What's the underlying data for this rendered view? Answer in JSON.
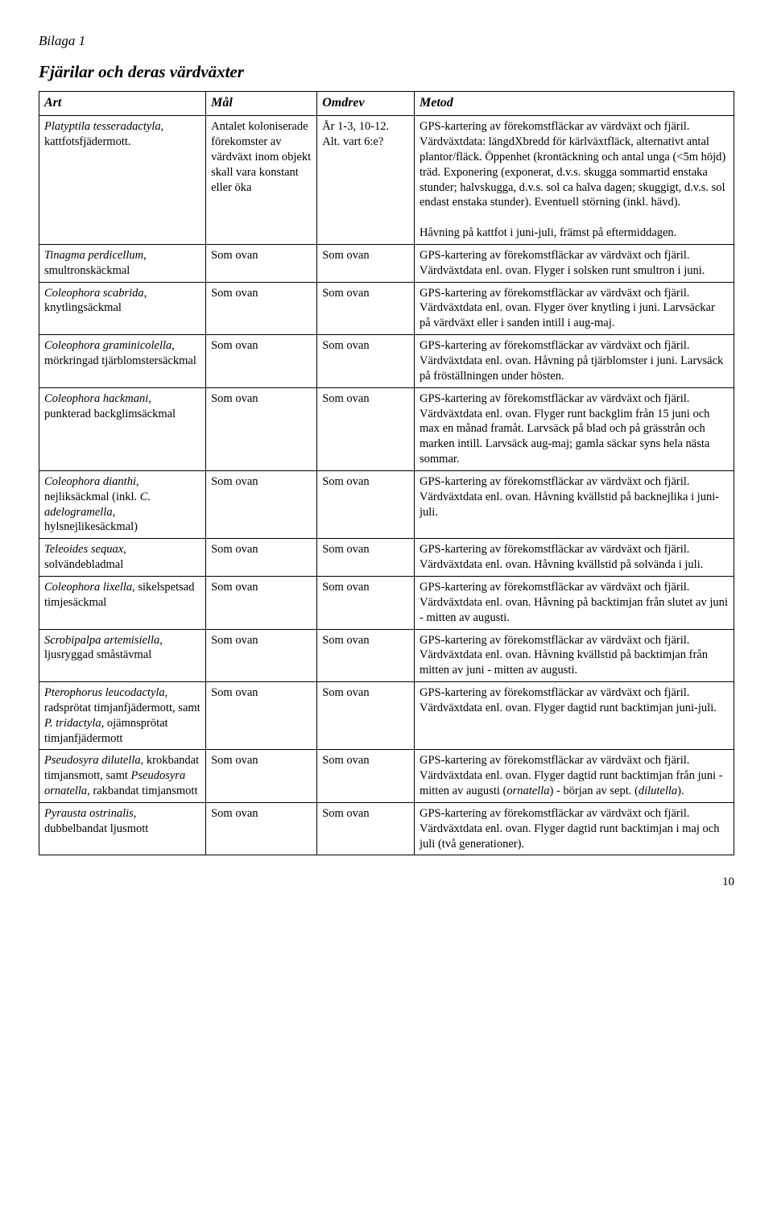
{
  "bilaga": "Bilaga 1",
  "main_title": "Fjärilar och deras värdväxter",
  "headers": {
    "art": "Art",
    "mal": "Mål",
    "omdrev": "Omdrev",
    "metod": "Metod"
  },
  "page_number": "10",
  "rows": [
    {
      "art_html": "<span class=\"species-it\">Platyptila tesseradactyla</span>, kattfotsfjädermott.",
      "mal": "Antalet koloniserade förekomster av värdväxt inom objekt skall vara konstant eller öka",
      "omdrev": "År 1-3, 10-12. Alt. vart 6:e?",
      "metod_html": "GPS-kartering av förekomstfläckar av värdväxt och fjäril. Värdväxtdata: längdXbredd för kärlväxtfläck, alternativt antal plantor/fläck. Öppenhet (krontäckning och antal unga (&lt;5m höjd) träd. Exponering (exponerat, d.v.s. skugga sommartid enstaka stunder; halvskugga, d.v.s. sol ca halva dagen; skuggigt, d.v.s. sol endast enstaka stunder). Eventuell störning (inkl. hävd).<br><br>Håvning på kattfot i juni-juli, främst på eftermiddagen."
    },
    {
      "art_html": "<span class=\"species-it\">Tinagma perdicellum</span>, smultronskäckmal",
      "mal": "Som ovan",
      "omdrev": "Som ovan",
      "metod_html": "GPS-kartering av förekomstfläckar av värdväxt och fjäril. Värdväxtdata enl. ovan. Flyger i solsken runt smultron i juni."
    },
    {
      "art_html": "<span class=\"species-it\">Coleophora scabrida</span>, knytlingsäckmal",
      "mal": "Som ovan",
      "omdrev": "Som ovan",
      "metod_html": "GPS-kartering av förekomstfläckar av värdväxt och fjäril. Värdväxtdata enl. ovan. Flyger över knytling i juni. Larvsäckar på värdväxt eller i sanden intill i aug-maj."
    },
    {
      "art_html": "<span class=\"species-it\">Coleophora graminicolella</span>, mörkringad tjärblomstersäckmal",
      "mal": "Som ovan",
      "omdrev": "Som ovan",
      "metod_html": "GPS-kartering av förekomstfläckar av värdväxt och fjäril. Värdväxtdata enl. ovan. Håvning på tjärblomster i juni. Larvsäck på fröställningen under hösten."
    },
    {
      "art_html": "<span class=\"species-it\">Coleophora hackmani</span>, punkterad backglimsäckmal",
      "mal": "Som ovan",
      "omdrev": "Som ovan",
      "metod_html": "GPS-kartering av förekomstfläckar av värdväxt och fjäril. Värdväxtdata enl. ovan. Flyger runt backglim från 15 juni och max en månad framåt. Larvsäck på blad och på grässtrån och marken intill. Larvsäck aug-maj; gamla säckar syns hela nästa sommar."
    },
    {
      "art_html": "<span class=\"species-it\">Coleophora dianthi</span>, nejliksäckmal (inkl. <span class=\"species-it\">C. adelogramella</span>, hylsnejlikesäckmal)",
      "mal": "Som ovan",
      "omdrev": "Som ovan",
      "metod_html": "GPS-kartering av förekomstfläckar av värdväxt och fjäril. Värdväxtdata enl. ovan. Håvning kvällstid på backnejlika i juni-juli."
    },
    {
      "art_html": "<span class=\"species-it\">Teleoides sequax</span>, solvändebladmal",
      "mal": "Som ovan",
      "omdrev": "Som ovan",
      "metod_html": "GPS-kartering av förekomstfläckar av värdväxt och fjäril. Värdväxtdata enl. ovan. Håvning kvällstid på solvända i juli."
    },
    {
      "art_html": "<span class=\"species-it\">Coleophora lixella</span>, sikelspetsad timjesäckmal",
      "mal": "Som ovan",
      "omdrev": "Som ovan",
      "metod_html": "GPS-kartering av förekomstfläckar av värdväxt och fjäril. Värdväxtdata enl. ovan. Håvning på backtimjan från slutet av juni - mitten av augusti."
    },
    {
      "art_html": "<span class=\"species-it\">Scrobipalpa artemisiella</span>, ljusryggad småstävmal",
      "mal": "Som ovan",
      "omdrev": "Som ovan",
      "metod_html": "GPS-kartering av förekomstfläckar av värdväxt och fjäril. Värdväxtdata enl. ovan. Håvning kvällstid på backtimjan från mitten av juni - mitten av augusti."
    },
    {
      "art_html": "<span class=\"species-it\">Pterophorus leucodactyla</span>, radsprötat timjanfjädermott, samt <span class=\"species-it\">P. tridactyla</span>, ojämnsprötat timjanfjädermott",
      "mal": "Som ovan",
      "omdrev": "Som ovan",
      "metod_html": "GPS-kartering av förekomstfläckar av värdväxt och fjäril. Värdväxtdata enl. ovan. Flyger dagtid runt backtimjan juni-juli."
    },
    {
      "art_html": "<span class=\"species-it\">Pseudosyra dilutella</span>, krokbandat timjansmott, samt <span class=\"species-it\">Pseudosyra ornatella</span>, rakbandat timjansmott",
      "mal": "Som ovan",
      "omdrev": "Som ovan",
      "metod_html": "GPS-kartering av förekomstfläckar av värdväxt och fjäril. Värdväxtdata enl. ovan. Flyger dagtid runt backtimjan från juni - mitten av augusti (<span class=\"species-it\">ornatella</span>) - början av sept. (<span class=\"species-it\">dilutella</span>)."
    },
    {
      "art_html": "<span class=\"species-it\">Pyrausta ostrinalis</span>, dubbelbandat ljusmott",
      "mal": "Som ovan",
      "omdrev": "Som ovan",
      "metod_html": "GPS-kartering av förekomstfläckar av värdväxt och fjäril. Värdväxtdata enl. ovan. Flyger dagtid runt backtimjan i maj och juli (två generationer)."
    }
  ]
}
